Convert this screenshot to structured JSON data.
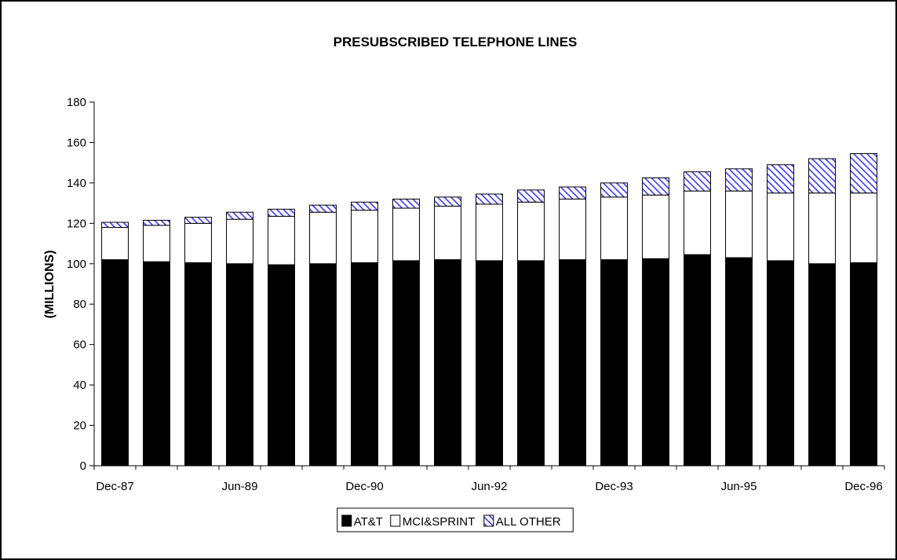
{
  "chart_data": {
    "type": "bar",
    "stacked": true,
    "title": "PRESUBSCRIBED TELEPHONE LINES",
    "xlabel": "",
    "ylabel": "(MILLIONS)",
    "ylim": [
      0,
      180
    ],
    "yticks": [
      0,
      20,
      40,
      60,
      80,
      100,
      120,
      140,
      160,
      180
    ],
    "grid": false,
    "legend_position": "bottom-center",
    "categories": [
      "Dec-87",
      "Jun-88",
      "Dec-88",
      "Jun-89",
      "Dec-89",
      "Jun-90",
      "Dec-90",
      "Jun-91",
      "Dec-91",
      "Jun-92",
      "Dec-92",
      "Jun-93",
      "Dec-93",
      "Jun-94",
      "Dec-94",
      "Jun-95",
      "Dec-95",
      "Jun-96",
      "Dec-96"
    ],
    "shown_xtick_labels": [
      "Dec-87",
      "Jun-89",
      "Dec-90",
      "Jun-92",
      "Dec-93",
      "Jun-95",
      "Dec-96"
    ],
    "series": [
      {
        "name": "AT&T",
        "color": "#000000",
        "values": [
          102,
          101,
          100.5,
          100,
          99.5,
          100,
          100.5,
          101.5,
          102,
          101.5,
          101.5,
          102,
          102,
          102.5,
          104.5,
          103,
          101.5,
          100,
          100.5
        ]
      },
      {
        "name": "MCI&SPRINT",
        "color": "#ffffff",
        "values": [
          16,
          18,
          19.5,
          22,
          24,
          25.5,
          26,
          26,
          26.5,
          28,
          29,
          30,
          31,
          31.5,
          31.5,
          33,
          33.5,
          35,
          34.5
        ]
      },
      {
        "name": "ALL OTHER",
        "color": "#3a3aff",
        "pattern": "diagonal-hatch",
        "values": [
          2.5,
          2.5,
          3,
          3.5,
          3.5,
          3.5,
          4,
          4.5,
          4.5,
          5,
          6,
          6,
          7,
          8.5,
          9.5,
          11,
          14,
          17,
          19.5
        ]
      }
    ]
  }
}
